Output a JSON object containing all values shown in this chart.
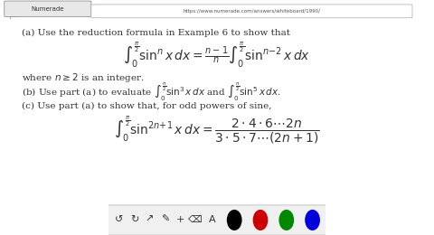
{
  "bg_color": "#ffffff",
  "browser_bar_color": "#2d2d2d",
  "browser_tab_color": "#e8e8e8",
  "text_color": "#333333",
  "toolbar_bg": "#f0f0f0",
  "line_a": "(a) Use the reduction formula in Example 6 to show that",
  "formula_main": "$\\int_0^{\\frac{\\pi}{2}} \\sin^n x\\, dx = \\frac{n-1}{n} \\int_0^{\\frac{\\pi}{2}} \\sin^{n-2} x\\, dx$",
  "line_where": "where $n \\geq 2$ is an integer.",
  "line_b": "(b) Use part (a) to evaluate $\\int_0^{\\frac{\\pi}{2}} \\sin^3 x\\, dx$ and $\\int_0^{\\frac{\\pi}{2}} \\sin^5 x\\, dx$.",
  "line_c": "(c) Use part (a) to show that, for odd powers of sine,",
  "formula_c": "$\\int_0^{\\frac{\\pi}{2}} \\sin^{2n+1} x\\, dx = \\dfrac{2 \\cdot 4 \\cdot 6 \\cdots 2n}{3 \\cdot 5 \\cdot 7 \\cdots (2n+1)}$",
  "toolbar_icons": [
    "↺",
    "↻",
    "▶",
    "✏",
    "+",
    "⌫",
    "A"
  ],
  "dot_colors": [
    "#000000",
    "#cc0000",
    "#008800",
    "#0000dd"
  ]
}
